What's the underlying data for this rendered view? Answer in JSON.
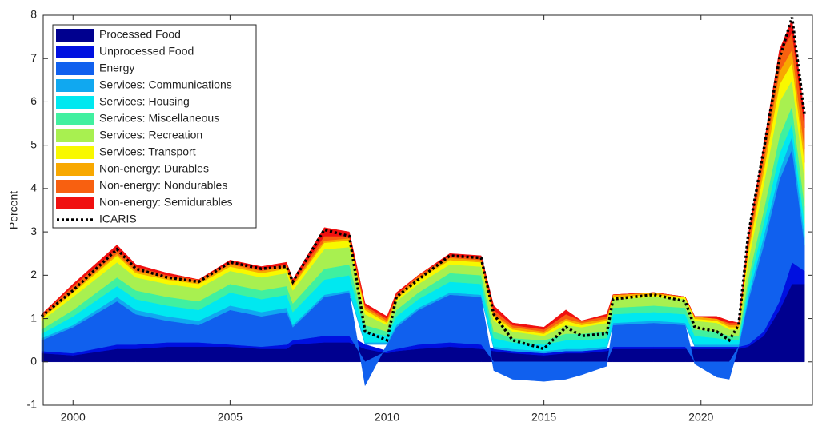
{
  "chart_data": {
    "type": "stacked-area",
    "y_label": "Percent",
    "x": [
      1999.0,
      2000.0,
      2001.4,
      2002.0,
      2003.0,
      2004.0,
      2005.0,
      2006.0,
      2006.8,
      2007.0,
      2008.0,
      2008.8,
      2009.3,
      2010.0,
      2010.3,
      2011.0,
      2012.0,
      2013.0,
      2013.4,
      2014.0,
      2015.0,
      2015.7,
      2016.2,
      2017.0,
      2017.2,
      2018.5,
      2019.5,
      2019.8,
      2020.5,
      2020.9,
      2021.2,
      2021.5,
      2022.0,
      2022.5,
      2022.9,
      2023.3
    ],
    "xlim": [
      1999.05,
      2023.55
    ],
    "xticks": [
      2000,
      2005,
      2010,
      2015,
      2020
    ],
    "ylim": [
      -1,
      8
    ],
    "yticks": [
      -1,
      0,
      1,
      2,
      3,
      4,
      5,
      6,
      7,
      8
    ],
    "series": [
      {
        "name": "Processed Food",
        "color": "#00008f",
        "values": [
          0.2,
          0.15,
          0.3,
          0.3,
          0.35,
          0.35,
          0.35,
          0.3,
          0.3,
          0.4,
          0.45,
          0.45,
          0.3,
          0.2,
          0.25,
          0.3,
          0.35,
          0.3,
          0.25,
          0.2,
          0.15,
          0.2,
          0.2,
          0.25,
          0.3,
          0.3,
          0.3,
          0.3,
          0.3,
          0.3,
          0.3,
          0.35,
          0.6,
          1.2,
          1.8,
          1.8
        ]
      },
      {
        "name": "Unprocessed Food",
        "color": "#0010e0",
        "values": [
          0.05,
          0.05,
          0.1,
          0.1,
          0.1,
          0.1,
          0.05,
          0.05,
          0.1,
          0.1,
          0.15,
          0.15,
          0.1,
          0.05,
          0.05,
          0.1,
          0.1,
          0.1,
          0.05,
          0.05,
          0.05,
          0.05,
          0.05,
          0.05,
          0.05,
          0.05,
          0.05,
          0.05,
          0.05,
          0.05,
          0.05,
          0.05,
          0.1,
          0.2,
          0.5,
          0.3
        ]
      },
      {
        "name": "Energy",
        "color": "#1060ee",
        "values": [
          0.25,
          0.6,
          1.0,
          0.7,
          0.5,
          0.4,
          0.8,
          0.7,
          0.75,
          0.3,
          0.9,
          1.0,
          -0.55,
          0.15,
          0.5,
          0.8,
          1.1,
          1.1,
          -0.2,
          -0.4,
          -0.45,
          -0.4,
          -0.3,
          -0.1,
          0.5,
          0.55,
          0.5,
          -0.05,
          -0.35,
          -0.4,
          0.0,
          1.0,
          2.0,
          2.8,
          2.6,
          0.6
        ]
      },
      {
        "name": "Services: Communications",
        "color": "#10a8f0",
        "values": [
          0.05,
          0.05,
          0.1,
          0.1,
          0.1,
          0.1,
          0.1,
          0.1,
          0.1,
          0.05,
          0.05,
          0.05,
          0.05,
          0.05,
          0.05,
          0.05,
          0.05,
          0.05,
          0.05,
          0.05,
          0.05,
          0.05,
          0.05,
          0.05,
          0.05,
          0.05,
          0.05,
          0.05,
          0.05,
          0.05,
          0.05,
          0.1,
          0.2,
          0.2,
          0.3,
          0.2
        ]
      },
      {
        "name": "Services: Housing",
        "color": "#00e8f0",
        "values": [
          0.1,
          0.2,
          0.25,
          0.25,
          0.25,
          0.25,
          0.3,
          0.3,
          0.3,
          0.3,
          0.35,
          0.35,
          0.25,
          0.15,
          0.2,
          0.2,
          0.25,
          0.25,
          0.2,
          0.15,
          0.15,
          0.2,
          0.2,
          0.2,
          0.2,
          0.2,
          0.2,
          0.2,
          0.15,
          0.1,
          0.1,
          0.2,
          0.3,
          0.4,
          0.3,
          0.3
        ]
      },
      {
        "name": "Services: Miscellaneous",
        "color": "#40f0a0",
        "values": [
          0.1,
          0.15,
          0.2,
          0.2,
          0.2,
          0.2,
          0.2,
          0.2,
          0.2,
          0.2,
          0.25,
          0.25,
          0.15,
          0.1,
          0.15,
          0.15,
          0.2,
          0.2,
          0.15,
          0.1,
          0.1,
          0.15,
          0.15,
          0.15,
          0.15,
          0.15,
          0.15,
          0.15,
          0.15,
          0.1,
          0.1,
          0.2,
          0.3,
          0.4,
          0.4,
          0.4
        ]
      },
      {
        "name": "Services: Recreation",
        "color": "#a8f050",
        "values": [
          0.2,
          0.3,
          0.35,
          0.3,
          0.3,
          0.3,
          0.3,
          0.3,
          0.3,
          0.3,
          0.45,
          0.4,
          0.25,
          0.15,
          0.2,
          0.2,
          0.2,
          0.2,
          0.25,
          0.15,
          0.1,
          0.2,
          0.15,
          0.2,
          0.2,
          0.2,
          0.2,
          0.2,
          0.2,
          0.15,
          0.15,
          0.4,
          0.6,
          0.8,
          0.6,
          0.6
        ]
      },
      {
        "name": "Services: Transport",
        "color": "#f8f800",
        "values": [
          0.05,
          0.1,
          0.15,
          0.1,
          0.1,
          0.1,
          0.1,
          0.1,
          0.1,
          0.1,
          0.15,
          0.15,
          0.1,
          0.05,
          0.05,
          0.1,
          0.1,
          0.1,
          0.1,
          0.05,
          0.05,
          0.1,
          0.05,
          0.05,
          0.05,
          0.05,
          0.05,
          0.05,
          0.05,
          0.05,
          0.05,
          0.2,
          0.3,
          0.4,
          0.4,
          0.4
        ]
      },
      {
        "name": "Non-energy: Durables",
        "color": "#f8a800",
        "values": [
          0.03,
          0.05,
          0.05,
          0.05,
          0.05,
          0.05,
          0.05,
          0.05,
          0.05,
          0.05,
          0.05,
          0.05,
          0.05,
          0.05,
          0.05,
          0.05,
          0.05,
          0.05,
          0.05,
          0.05,
          0.05,
          0.05,
          0.05,
          0.05,
          0.05,
          0.05,
          0.0,
          0.05,
          0.05,
          0.05,
          0.05,
          0.1,
          0.2,
          0.3,
          0.3,
          0.3
        ]
      },
      {
        "name": "Non-energy: Nondurables",
        "color": "#f86010",
        "values": [
          0.05,
          0.1,
          0.1,
          0.1,
          0.05,
          0.05,
          0.05,
          0.05,
          0.05,
          0.05,
          0.1,
          0.05,
          0.05,
          0.05,
          0.05,
          0.05,
          0.05,
          0.05,
          0.1,
          0.05,
          0.05,
          0.1,
          0.05,
          0.05,
          0.0,
          0.0,
          0.0,
          0.0,
          0.0,
          0.05,
          0.05,
          0.2,
          0.3,
          0.4,
          0.4,
          0.5
        ]
      },
      {
        "name": "Non-energy: Semidurables",
        "color": "#f01010",
        "values": [
          0.02,
          0.05,
          0.1,
          0.05,
          0.05,
          0.0,
          0.05,
          0.05,
          0.05,
          0.05,
          0.2,
          0.1,
          0.05,
          0.05,
          0.05,
          0.0,
          0.05,
          0.05,
          0.1,
          0.05,
          0.05,
          0.1,
          0.0,
          0.05,
          0.0,
          0.0,
          0.0,
          0.0,
          0.05,
          0.05,
          0.0,
          0.1,
          0.1,
          0.1,
          0.3,
          0.3
        ]
      }
    ],
    "line": {
      "name": "ICARIS",
      "color": "#000000",
      "values": [
        1.05,
        1.65,
        2.6,
        2.15,
        1.95,
        1.85,
        2.3,
        2.15,
        2.2,
        1.85,
        3.05,
        2.9,
        0.7,
        0.5,
        1.5,
        1.9,
        2.45,
        2.4,
        1.1,
        0.5,
        0.3,
        0.8,
        0.6,
        0.65,
        1.45,
        1.55,
        1.4,
        0.8,
        0.7,
        0.5,
        0.85,
        2.9,
        4.9,
        7.0,
        7.95,
        5.7
      ]
    }
  }
}
